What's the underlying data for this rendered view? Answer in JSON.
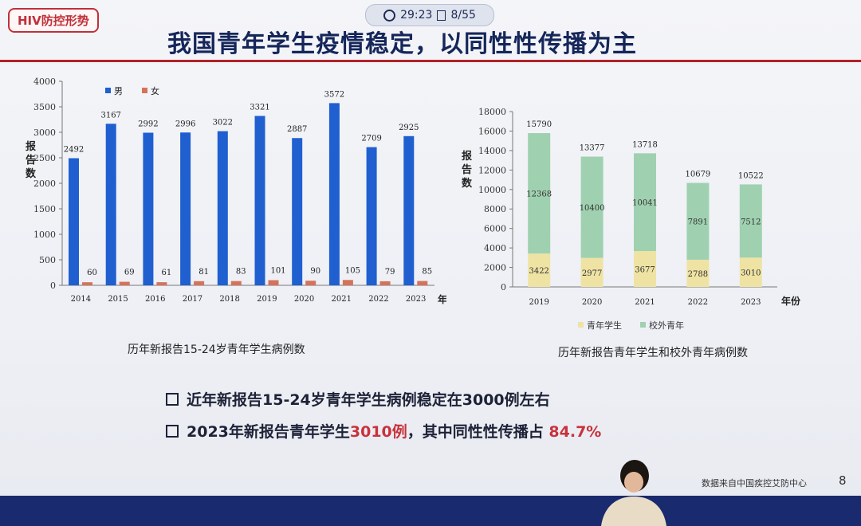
{
  "status_bar": {
    "time": "29:23",
    "page": "8/55"
  },
  "section_tag": "HIV防控形势",
  "title": "我国青年学生疫情稳定，以同性性传播为主",
  "chart_data": [
    {
      "type": "bar",
      "title": "历年新报告15-24岁青年学生病例数",
      "ylabel": "报告数",
      "xlabel": "年份",
      "ylim": [
        0,
        4000
      ],
      "yticks": [
        0,
        500,
        1000,
        1500,
        2000,
        2500,
        3000,
        3500,
        4000
      ],
      "categories": [
        "2014",
        "2015",
        "2016",
        "2017",
        "2018",
        "2019",
        "2020",
        "2021",
        "2022",
        "2023"
      ],
      "legend_position": "top-left",
      "series": [
        {
          "name": "男",
          "color": "#1f5fd0",
          "values": [
            2492,
            3167,
            2992,
            2996,
            3022,
            3321,
            2887,
            3572,
            2709,
            2925
          ]
        },
        {
          "name": "女",
          "color": "#d4735a",
          "values": [
            60,
            69,
            61,
            81,
            83,
            101,
            90,
            105,
            79,
            85
          ]
        }
      ]
    },
    {
      "type": "bar",
      "stacked": true,
      "title": "历年新报告青年学生和校外青年病例数",
      "ylabel": "报告数",
      "xlabel": "年份",
      "ylim": [
        0,
        18000
      ],
      "yticks": [
        0,
        2000,
        4000,
        6000,
        8000,
        10000,
        12000,
        14000,
        16000,
        18000
      ],
      "categories": [
        "2019",
        "2020",
        "2021",
        "2022",
        "2023"
      ],
      "totals": [
        15790,
        13377,
        13718,
        10679,
        10522
      ],
      "legend_position": "bottom",
      "series": [
        {
          "name": "青年学生",
          "color": "#efe3a4",
          "values": [
            3422,
            2977,
            3677,
            2788,
            3010
          ]
        },
        {
          "name": "校外青年",
          "color": "#9fd1b0",
          "values": [
            12368,
            10400,
            10041,
            7891,
            7512
          ]
        }
      ]
    }
  ],
  "bullets": [
    {
      "text": "近年新报告15-24岁青年学生病例稳定在3000例左右"
    },
    {
      "prefix": "2023年新报告青年学生",
      "highlight1": "3010例",
      "middle": "，其中同性性传播占 ",
      "highlight2": "84.7%"
    }
  ],
  "source": "数据来自中国疾控艾防中心",
  "page_number": "8"
}
